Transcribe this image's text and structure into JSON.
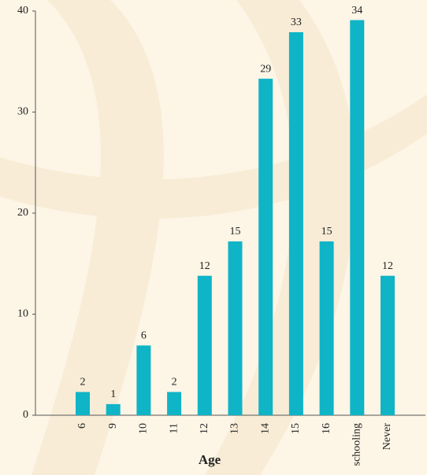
{
  "chart_data": {
    "type": "bar",
    "x_label": "Age",
    "categories": [
      "6",
      "9",
      "10",
      "11",
      "12",
      "13",
      "14",
      "15",
      "16",
      "schooling",
      "Never"
    ],
    "values": [
      2.3,
      1.1,
      6.9,
      2.3,
      13.8,
      17.2,
      33.3,
      37.9,
      17.2,
      39.1,
      13.8
    ],
    "counts": [
      2,
      1,
      6,
      2,
      12,
      15,
      29,
      33,
      15,
      34,
      12
    ],
    "color": "#0fb4c6",
    "ylim": [
      0,
      40
    ],
    "yticks": [
      0,
      10,
      20,
      30,
      40
    ]
  }
}
